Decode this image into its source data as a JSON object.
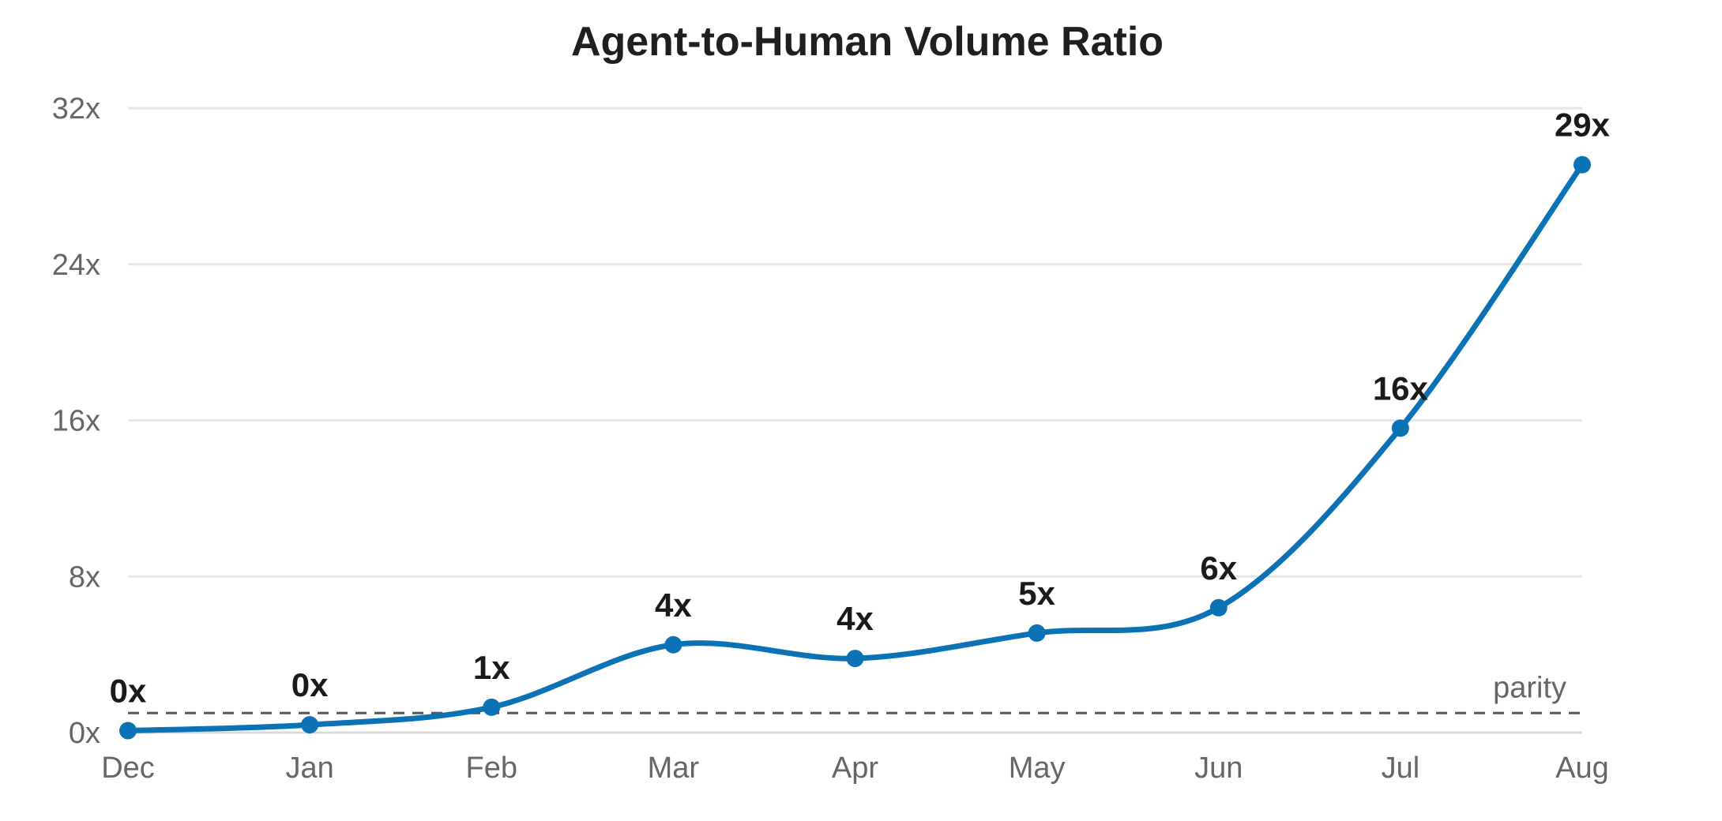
{
  "chart_data": {
    "type": "line",
    "title": "Agent-to-Human Volume Ratio",
    "xlabel": "",
    "ylabel": "",
    "categories": [
      "Dec",
      "Jan",
      "Feb",
      "Mar",
      "Apr",
      "May",
      "Jun",
      "Jul",
      "Aug"
    ],
    "series": [
      {
        "values": [
          0.1,
          0.4,
          1.3,
          4.5,
          3.8,
          5.1,
          6.4,
          15.6,
          29.1
        ],
        "point_labels": [
          "0x",
          "0x",
          "1x",
          "4x",
          "4x",
          "5x",
          "6x",
          "16x",
          "29x"
        ],
        "color": "#0a72b5"
      }
    ],
    "ylim": [
      0,
      32
    ],
    "yticks": [
      0,
      8,
      16,
      24,
      32
    ],
    "ytick_labels": [
      "0x",
      "8x",
      "16x",
      "24x",
      "32x"
    ],
    "grid": "horizontal",
    "curve": "smooth",
    "reference_line": {
      "value": 1,
      "label": "parity",
      "style": "dashed",
      "color": "#555555"
    },
    "colors": {
      "line": "#0a72b5",
      "grid": "#e6e6e6",
      "axis": "#d9d9d9",
      "tick_text": "#666666",
      "label_text": "#1a1a1a"
    }
  }
}
